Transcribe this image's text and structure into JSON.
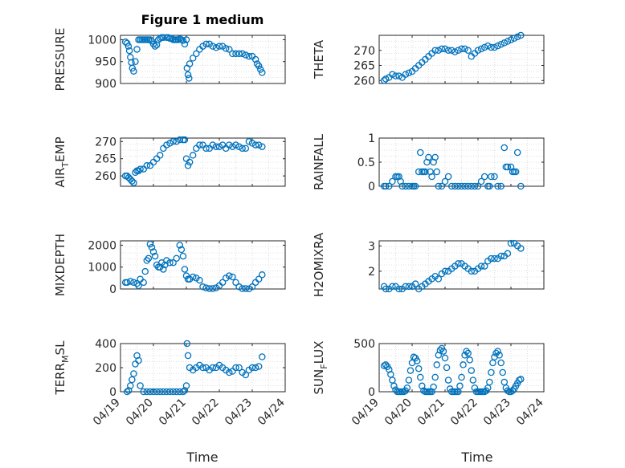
{
  "figure": {
    "title": "Figure 1 medium",
    "xlabel": "Time"
  },
  "chart_data": [
    {
      "type": "scatter",
      "ylabel": "PRESSURE",
      "ylim": [
        900,
        1010
      ],
      "yticks": [
        900,
        950,
        1000
      ],
      "ytick_labels": [
        "900",
        "950",
        "1000"
      ],
      "xlim": [
        0,
        5
      ],
      "xticks": [],
      "xtick_labels": [],
      "grid": true,
      "color": "#0072BD",
      "x": [
        0.15,
        0.2,
        0.24,
        0.27,
        0.3,
        0.33,
        0.36,
        0.4,
        0.45,
        0.5,
        0.55,
        0.6,
        0.65,
        0.7,
        0.75,
        0.8,
        0.85,
        0.9,
        0.95,
        1.0,
        1.05,
        1.1,
        1.15,
        1.2,
        1.25,
        1.3,
        1.4,
        1.45,
        1.5,
        1.55,
        1.6,
        1.65,
        1.7,
        1.75,
        1.8,
        1.85,
        1.9,
        1.95,
        2.0,
        2.02,
        2.05,
        2.08,
        2.1,
        2.2,
        2.3,
        2.4,
        2.5,
        2.6,
        2.7,
        2.8,
        2.9,
        3.0,
        3.1,
        3.2,
        3.3,
        3.4,
        3.5,
        3.6,
        3.7,
        3.8,
        3.9,
        4.0,
        4.1,
        4.15,
        4.2,
        4.25,
        4.3
      ],
      "y": [
        995,
        992,
        985,
        975,
        960,
        948,
        935,
        928,
        950,
        978,
        1000,
        1000,
        1000,
        1000,
        1000,
        1000,
        1000,
        1000,
        997,
        990,
        985,
        988,
        1000,
        1003,
        1005,
        1005,
        1005,
        1005,
        1003,
        1003,
        1000,
        1000,
        1000,
        1000,
        1002,
        1000,
        998,
        990,
        1000,
        935,
        920,
        912,
        945,
        958,
        968,
        978,
        985,
        990,
        990,
        985,
        982,
        985,
        985,
        980,
        978,
        968,
        968,
        968,
        968,
        965,
        962,
        962,
        955,
        945,
        940,
        932,
        925
      ]
    },
    {
      "type": "scatter",
      "ylabel": "THETA",
      "ylim": [
        259,
        275
      ],
      "yticks": [
        260,
        265,
        270
      ],
      "ytick_labels": [
        "260",
        "265",
        "270"
      ],
      "xlim": [
        0,
        5
      ],
      "xticks": [],
      "xtick_labels": [],
      "grid": true,
      "color": "#0072BD",
      "x": [
        0.15,
        0.2,
        0.3,
        0.4,
        0.5,
        0.6,
        0.7,
        0.8,
        0.9,
        1.0,
        1.1,
        1.2,
        1.3,
        1.4,
        1.5,
        1.6,
        1.7,
        1.8,
        1.9,
        2.0,
        2.1,
        2.2,
        2.3,
        2.4,
        2.5,
        2.6,
        2.7,
        2.8,
        2.9,
        3.0,
        3.1,
        3.2,
        3.3,
        3.4,
        3.5,
        3.6,
        3.7,
        3.8,
        3.9,
        4.0,
        4.1,
        4.2,
        4.3
      ],
      "y": [
        260,
        260.5,
        261,
        262,
        261.5,
        261.5,
        261,
        262,
        262.5,
        263,
        264,
        265,
        266,
        267,
        268,
        269,
        270,
        270,
        270.5,
        270.5,
        270,
        270,
        269.5,
        270,
        270.5,
        270.5,
        270,
        268,
        269,
        270,
        270.5,
        271,
        271.5,
        271,
        271,
        271.5,
        272,
        272.5,
        273,
        273.5,
        274,
        274.5,
        275
      ]
    },
    {
      "type": "scatter",
      "ylabel": "AIR_TEMP",
      "ylim": [
        257,
        271
      ],
      "yticks": [
        260,
        265,
        270
      ],
      "ytick_labels": [
        "260",
        "265",
        "270"
      ],
      "xlim": [
        0,
        5
      ],
      "xticks": [],
      "xtick_labels": [],
      "grid": true,
      "color": "#0072BD",
      "x": [
        0.15,
        0.2,
        0.25,
        0.3,
        0.35,
        0.4,
        0.45,
        0.5,
        0.55,
        0.6,
        0.7,
        0.8,
        0.9,
        1.0,
        1.1,
        1.2,
        1.3,
        1.4,
        1.5,
        1.6,
        1.7,
        1.8,
        1.9,
        1.95,
        2.0,
        2.05,
        2.1,
        2.2,
        2.3,
        2.4,
        2.5,
        2.6,
        2.7,
        2.8,
        2.9,
        3.0,
        3.1,
        3.2,
        3.3,
        3.4,
        3.5,
        3.6,
        3.7,
        3.8,
        3.9,
        4.0,
        4.1,
        4.2,
        4.3
      ],
      "y": [
        260,
        260,
        259.5,
        259,
        258.5,
        258,
        261,
        261.5,
        261.5,
        262,
        262,
        263,
        263,
        264,
        265,
        266,
        268,
        269,
        269.5,
        270,
        270,
        270.5,
        270.5,
        270.5,
        265,
        263,
        264,
        266,
        268,
        269,
        269,
        268,
        268,
        269,
        268.5,
        268.5,
        269,
        268,
        269,
        268.5,
        269,
        268.5,
        268,
        268,
        270,
        269.5,
        269,
        269,
        268.5
      ]
    },
    {
      "type": "scatter",
      "ylabel": "RAINFALL",
      "ylim": [
        0,
        1
      ],
      "yticks": [
        0,
        0.5,
        1
      ],
      "ytick_labels": [
        "0",
        "0.5",
        "1"
      ],
      "xlim": [
        0,
        5
      ],
      "xticks": [],
      "xtick_labels": [],
      "grid": true,
      "color": "#0072BD",
      "x": [
        0.15,
        0.2,
        0.3,
        0.4,
        0.5,
        0.55,
        0.6,
        0.65,
        0.7,
        0.8,
        0.9,
        1.0,
        1.05,
        1.1,
        1.2,
        1.25,
        1.3,
        1.35,
        1.4,
        1.45,
        1.5,
        1.55,
        1.6,
        1.65,
        1.7,
        1.75,
        1.8,
        1.9,
        2.0,
        2.1,
        2.2,
        2.3,
        2.4,
        2.5,
        2.6,
        2.7,
        2.8,
        2.9,
        3.0,
        3.1,
        3.2,
        3.3,
        3.35,
        3.4,
        3.5,
        3.6,
        3.7,
        3.8,
        3.85,
        3.9,
        4.0,
        4.05,
        4.1,
        4.15,
        4.2,
        4.3
      ],
      "y": [
        0,
        0,
        0,
        0.1,
        0.2,
        0.2,
        0.2,
        0.1,
        0,
        0,
        0,
        0,
        0,
        0,
        0.3,
        0.7,
        0.3,
        0.3,
        0.3,
        0.5,
        0.6,
        0.3,
        0.2,
        0.5,
        0.6,
        0.3,
        0,
        0,
        0.1,
        0.2,
        0,
        0,
        0,
        0,
        0,
        0,
        0,
        0,
        0,
        0.1,
        0.2,
        0,
        0,
        0.2,
        0.2,
        0,
        0,
        0.8,
        0.4,
        0.4,
        0.4,
        0.3,
        0.3,
        0.3,
        0.7,
        0
      ]
    },
    {
      "type": "scatter",
      "ylabel": "MIXDEPTH",
      "ylim": [
        0,
        2200
      ],
      "yticks": [
        0,
        1000,
        2000
      ],
      "ytick_labels": [
        "0",
        "1000",
        "2000"
      ],
      "xlim": [
        0,
        5
      ],
      "xticks": [],
      "xtick_labels": [],
      "grid": true,
      "color": "#0072BD",
      "x": [
        0.15,
        0.2,
        0.3,
        0.4,
        0.5,
        0.55,
        0.6,
        0.7,
        0.75,
        0.8,
        0.85,
        0.9,
        0.95,
        1.0,
        1.05,
        1.1,
        1.15,
        1.2,
        1.25,
        1.3,
        1.35,
        1.4,
        1.5,
        1.6,
        1.7,
        1.8,
        1.85,
        1.9,
        1.95,
        2.0,
        2.05,
        2.1,
        2.2,
        2.3,
        2.4,
        2.5,
        2.6,
        2.7,
        2.8,
        2.9,
        3.0,
        3.1,
        3.2,
        3.3,
        3.4,
        3.5,
        3.6,
        3.7,
        3.8,
        3.9,
        4.0,
        4.1,
        4.2,
        4.3
      ],
      "y": [
        300,
        300,
        350,
        300,
        250,
        150,
        450,
        300,
        800,
        1300,
        1400,
        2050,
        1900,
        1700,
        1500,
        1100,
        1000,
        1000,
        1200,
        900,
        1100,
        1300,
        1200,
        1200,
        1400,
        2000,
        1800,
        1500,
        900,
        600,
        450,
        450,
        550,
        500,
        400,
        100,
        50,
        20,
        20,
        50,
        150,
        300,
        500,
        600,
        550,
        300,
        100,
        20,
        20,
        10,
        100,
        300,
        450,
        650
      ]
    },
    {
      "type": "scatter",
      "ylabel": "H2OMIXRA",
      "ylim": [
        1.3,
        3.2
      ],
      "yticks": [
        2,
        3
      ],
      "ytick_labels": [
        "2",
        "3"
      ],
      "xlim": [
        0,
        5
      ],
      "xticks": [],
      "xtick_labels": [],
      "grid": true,
      "color": "#0072BD",
      "x": [
        0.15,
        0.2,
        0.3,
        0.4,
        0.5,
        0.6,
        0.7,
        0.8,
        0.9,
        1.0,
        1.1,
        1.2,
        1.3,
        1.4,
        1.5,
        1.6,
        1.7,
        1.8,
        1.9,
        2.0,
        2.1,
        2.2,
        2.3,
        2.4,
        2.5,
        2.6,
        2.7,
        2.8,
        2.9,
        3.0,
        3.1,
        3.2,
        3.3,
        3.4,
        3.5,
        3.6,
        3.7,
        3.8,
        3.9,
        4.0,
        4.1,
        4.2,
        4.3
      ],
      "y": [
        1.4,
        1.3,
        1.3,
        1.4,
        1.4,
        1.3,
        1.3,
        1.4,
        1.4,
        1.4,
        1.5,
        1.3,
        1.4,
        1.5,
        1.6,
        1.7,
        1.8,
        1.7,
        1.9,
        2.0,
        2.0,
        2.1,
        2.2,
        2.3,
        2.3,
        2.2,
        2.1,
        2.0,
        2.0,
        2.1,
        2.2,
        2.2,
        2.4,
        2.5,
        2.5,
        2.5,
        2.6,
        2.6,
        2.7,
        3.1,
        3.1,
        3.0,
        2.9
      ]
    },
    {
      "type": "scatter",
      "ylabel": "TERR_MSL",
      "ylim": [
        0,
        400
      ],
      "yticks": [
        0,
        200,
        400
      ],
      "ytick_labels": [
        "0",
        "200",
        "400"
      ],
      "xlim": [
        0,
        5
      ],
      "xticks": [
        0,
        1,
        2,
        3,
        4,
        5
      ],
      "xtick_labels": [
        "04/19",
        "04/20",
        "04/21",
        "04/22",
        "04/23",
        "04/24"
      ],
      "grid": true,
      "color": "#0072BD",
      "x": [
        0.2,
        0.25,
        0.3,
        0.35,
        0.4,
        0.45,
        0.5,
        0.55,
        0.6,
        0.7,
        0.8,
        0.9,
        1.0,
        1.1,
        1.2,
        1.3,
        1.4,
        1.5,
        1.6,
        1.7,
        1.8,
        1.9,
        1.95,
        2.0,
        2.02,
        2.05,
        2.1,
        2.2,
        2.3,
        2.4,
        2.5,
        2.6,
        2.7,
        2.8,
        2.9,
        3.0,
        3.1,
        3.2,
        3.3,
        3.4,
        3.5,
        3.6,
        3.7,
        3.8,
        3.9,
        4.0,
        4.1,
        4.2,
        4.3
      ],
      "y": [
        0,
        10,
        50,
        100,
        150,
        230,
        300,
        260,
        50,
        0,
        0,
        0,
        0,
        0,
        0,
        0,
        0,
        0,
        0,
        0,
        0,
        0,
        10,
        50,
        400,
        300,
        200,
        180,
        200,
        220,
        200,
        200,
        180,
        200,
        200,
        220,
        200,
        180,
        160,
        170,
        200,
        200,
        160,
        140,
        180,
        200,
        200,
        210,
        290
      ]
    },
    {
      "type": "scatter",
      "ylabel": "SUN_FLUX",
      "ylim": [
        0,
        500
      ],
      "yticks": [
        0,
        500
      ],
      "ytick_labels": [
        "0",
        "500"
      ],
      "xlim": [
        0,
        5
      ],
      "xticks": [
        0,
        1,
        2,
        3,
        4,
        5
      ],
      "xtick_labels": [
        "04/19",
        "04/20",
        "04/21",
        "04/22",
        "04/23",
        "04/24"
      ],
      "grid": true,
      "color": "#0072BD",
      "x": [
        0.15,
        0.2,
        0.25,
        0.3,
        0.35,
        0.4,
        0.45,
        0.5,
        0.55,
        0.6,
        0.65,
        0.7,
        0.75,
        0.8,
        0.85,
        0.9,
        0.95,
        1.0,
        1.05,
        1.1,
        1.15,
        1.2,
        1.25,
        1.3,
        1.35,
        1.4,
        1.45,
        1.5,
        1.55,
        1.6,
        1.65,
        1.7,
        1.75,
        1.8,
        1.85,
        1.9,
        1.95,
        2.0,
        2.05,
        2.1,
        2.15,
        2.2,
        2.25,
        2.3,
        2.35,
        2.4,
        2.45,
        2.5,
        2.55,
        2.6,
        2.65,
        2.7,
        2.75,
        2.8,
        2.85,
        2.9,
        2.95,
        3.0,
        3.05,
        3.1,
        3.15,
        3.2,
        3.25,
        3.3,
        3.35,
        3.4,
        3.45,
        3.5,
        3.55,
        3.6,
        3.65,
        3.7,
        3.75,
        3.8,
        3.85,
        3.9,
        3.95,
        4.0,
        4.05,
        4.1,
        4.15,
        4.2,
        4.25,
        4.3
      ],
      "y": [
        270,
        280,
        260,
        230,
        180,
        120,
        60,
        20,
        0,
        0,
        0,
        0,
        0,
        10,
        40,
        120,
        220,
        300,
        360,
        350,
        320,
        240,
        150,
        60,
        10,
        0,
        0,
        0,
        0,
        0,
        50,
        150,
        280,
        380,
        430,
        450,
        420,
        350,
        250,
        120,
        30,
        0,
        0,
        0,
        0,
        0,
        60,
        150,
        280,
        380,
        420,
        400,
        330,
        220,
        120,
        40,
        0,
        0,
        0,
        0,
        0,
        0,
        10,
        40,
        100,
        200,
        300,
        360,
        400,
        420,
        380,
        300,
        200,
        100,
        40,
        10,
        0,
        0,
        10,
        30,
        60,
        90,
        120,
        130
      ]
    }
  ]
}
